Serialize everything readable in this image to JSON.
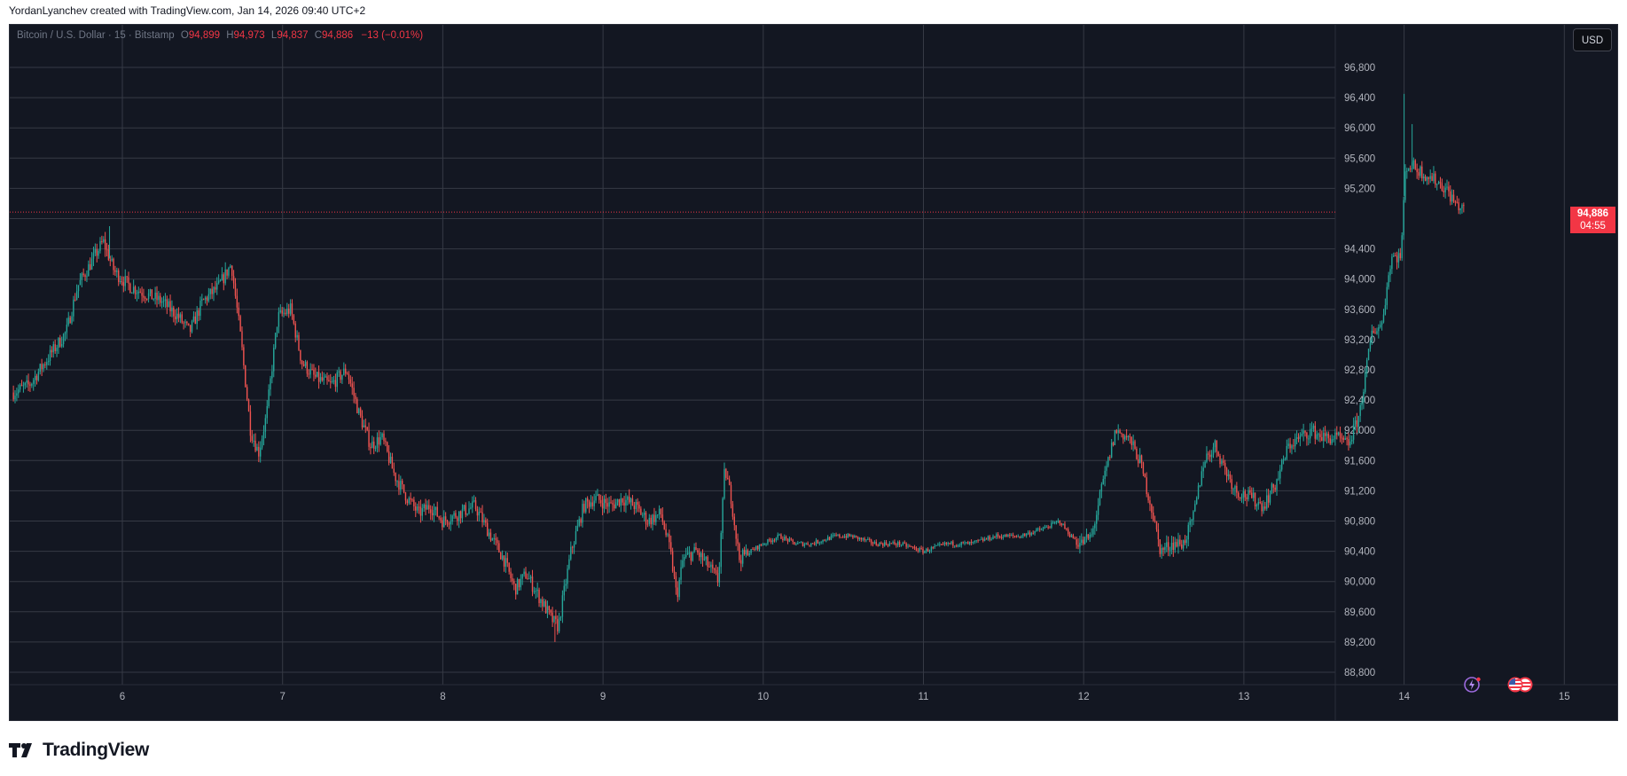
{
  "header": {
    "credit": "YordanLyanchev created with TradingView.com, Jan 14, 2026 09:40 UTC+2"
  },
  "legend": {
    "symbol": "Bitcoin / U.S. Dollar · 15 · Bitstamp",
    "o_label": "O",
    "open": "94,899",
    "h_label": "H",
    "high": "94,973",
    "l_label": "L",
    "low": "94,837",
    "c_label": "C",
    "close": "94,886",
    "change": "−13 (−0.01%)"
  },
  "price_axis": {
    "currency_button": "USD",
    "current_price": "94,886",
    "countdown": "04:55"
  },
  "footer": {
    "brand": "TradingView"
  },
  "colors": {
    "background": "#131722",
    "grid": "#363a45",
    "up": "#26a69a",
    "down": "#ef5350",
    "price_tag": "#f23645"
  },
  "event_icons": [
    "lightning-event-icon",
    "us-flag-event-icon"
  ],
  "chart_data": {
    "type": "candlestick",
    "symbol": "Bitcoin / U.S. Dollar",
    "interval": "15",
    "exchange": "Bitstamp",
    "currency": "USD",
    "x_tick_labels": [
      "6",
      "7",
      "8",
      "9",
      "10",
      "11",
      "12",
      "13",
      "14",
      "15"
    ],
    "y_tick_labels": [
      "88,800",
      "89,200",
      "89,600",
      "90,000",
      "90,400",
      "90,800",
      "91,200",
      "91,600",
      "92,000",
      "92,400",
      "92,800",
      "93,200",
      "93,600",
      "94,000",
      "94,400",
      "95,200",
      "95,600",
      "96,000",
      "96,400",
      "96,800"
    ],
    "y_ticks": [
      88800,
      89200,
      89600,
      90000,
      90400,
      90800,
      91200,
      91600,
      92000,
      92400,
      92800,
      93200,
      93600,
      94000,
      94400,
      94800,
      95200,
      95600,
      96000,
      96400,
      96800
    ],
    "y_range": [
      88400,
      97400
    ],
    "x_range": [
      5.3,
      15.05
    ],
    "last_price": 94886,
    "grid": true,
    "path_day_close": [
      [
        5.32,
        92500
      ],
      [
        5.42,
        92600
      ],
      [
        5.55,
        93000
      ],
      [
        5.65,
        93300
      ],
      [
        5.72,
        93900
      ],
      [
        5.8,
        94200
      ],
      [
        5.88,
        94500
      ],
      [
        5.95,
        94100
      ],
      [
        6.05,
        93900
      ],
      [
        6.15,
        93800
      ],
      [
        6.25,
        93700
      ],
      [
        6.35,
        93500
      ],
      [
        6.42,
        93300
      ],
      [
        6.5,
        93700
      ],
      [
        6.6,
        93900
      ],
      [
        6.68,
        94200
      ],
      [
        6.74,
        93200
      ],
      [
        6.8,
        92000
      ],
      [
        6.85,
        91700
      ],
      [
        6.9,
        92200
      ],
      [
        6.97,
        93500
      ],
      [
        7.05,
        93600
      ],
      [
        7.12,
        92900
      ],
      [
        7.2,
        92700
      ],
      [
        7.3,
        92600
      ],
      [
        7.4,
        92800
      ],
      [
        7.48,
        92200
      ],
      [
        7.55,
        91800
      ],
      [
        7.62,
        91900
      ],
      [
        7.7,
        91400
      ],
      [
        7.78,
        91100
      ],
      [
        7.85,
        90900
      ],
      [
        7.92,
        91000
      ],
      [
        8.0,
        90800
      ],
      [
        8.1,
        90900
      ],
      [
        8.2,
        91000
      ],
      [
        8.3,
        90600
      ],
      [
        8.38,
        90300
      ],
      [
        8.45,
        89900
      ],
      [
        8.52,
        90100
      ],
      [
        8.6,
        89800
      ],
      [
        8.68,
        89500
      ],
      [
        8.72,
        89400
      ],
      [
        8.8,
        90400
      ],
      [
        8.88,
        91000
      ],
      [
        8.95,
        91100
      ],
      [
        9.05,
        91000
      ],
      [
        9.12,
        91100
      ],
      [
        9.2,
        91000
      ],
      [
        9.28,
        90800
      ],
      [
        9.36,
        90900
      ],
      [
        9.42,
        90400
      ],
      [
        9.46,
        89800
      ],
      [
        9.5,
        90300
      ],
      [
        9.58,
        90400
      ],
      [
        9.66,
        90200
      ],
      [
        9.72,
        90000
      ],
      [
        9.76,
        91500
      ],
      [
        9.8,
        91100
      ],
      [
        9.85,
        90300
      ],
      [
        9.92,
        90400
      ],
      [
        10.0,
        90500
      ],
      [
        10.1,
        90600
      ],
      [
        10.2,
        90500
      ],
      [
        10.3,
        90500
      ],
      [
        10.45,
        90600
      ],
      [
        10.55,
        90600
      ],
      [
        10.7,
        90500
      ],
      [
        10.85,
        90500
      ],
      [
        11.0,
        90400
      ],
      [
        11.15,
        90500
      ],
      [
        11.3,
        90500
      ],
      [
        11.45,
        90600
      ],
      [
        11.6,
        90600
      ],
      [
        11.75,
        90700
      ],
      [
        11.85,
        90800
      ],
      [
        11.92,
        90600
      ],
      [
        11.98,
        90500
      ],
      [
        12.05,
        90600
      ],
      [
        12.12,
        91300
      ],
      [
        12.2,
        92000
      ],
      [
        12.28,
        91900
      ],
      [
        12.35,
        91600
      ],
      [
        12.42,
        91000
      ],
      [
        12.48,
        90400
      ],
      [
        12.55,
        90500
      ],
      [
        12.62,
        90500
      ],
      [
        12.68,
        90800
      ],
      [
        12.75,
        91600
      ],
      [
        12.82,
        91800
      ],
      [
        12.88,
        91500
      ],
      [
        12.95,
        91200
      ],
      [
        13.05,
        91100
      ],
      [
        13.12,
        91000
      ],
      [
        13.2,
        91300
      ],
      [
        13.28,
        91800
      ],
      [
        13.35,
        91900
      ],
      [
        13.42,
        92000
      ],
      [
        13.5,
        91900
      ],
      [
        13.58,
        91900
      ],
      [
        13.65,
        91800
      ],
      [
        13.72,
        92200
      ],
      [
        13.8,
        93300
      ],
      [
        13.86,
        93400
      ],
      [
        13.92,
        94300
      ],
      [
        13.98,
        94300
      ],
      [
        14.01,
        95500
      ],
      [
        14.05,
        95500
      ],
      [
        14.12,
        95400
      ],
      [
        14.2,
        95300
      ],
      [
        14.26,
        95200
      ],
      [
        14.32,
        95000
      ],
      [
        14.38,
        94900
      ]
    ],
    "notable_points": [
      {
        "label": "high near day 6",
        "x": 5.92,
        "y": 94700
      },
      {
        "label": "low near day 8.7",
        "x": 8.7,
        "y": 89200
      },
      {
        "label": "spike high day 14",
        "x": 14.0,
        "y": 96450
      },
      {
        "label": "local high day 14",
        "x": 14.05,
        "y": 96050
      }
    ]
  }
}
